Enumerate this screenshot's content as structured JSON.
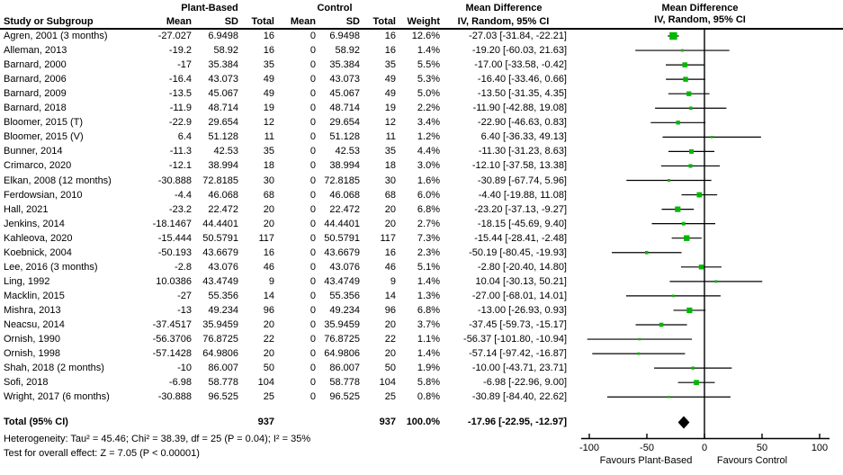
{
  "table": {
    "header": {
      "group1": "Plant-Based",
      "group2": "Control",
      "study_col": "Study or Subgroup",
      "mean": "Mean",
      "sd": "SD",
      "total": "Total",
      "weight": "Weight",
      "md_title": "Mean Difference",
      "md_subtitle": "IV, Random, 95% CI"
    },
    "rows": [
      {
        "study": "Agren, 2001 (3 months)",
        "pb_mean": "-27.027",
        "pb_sd": "6.9498",
        "pb_total": "16",
        "c_mean": "0",
        "c_sd": "6.9498",
        "c_total": "16",
        "weight": "12.6%",
        "ci_text": "-27.03 [-31.84, -22.21]"
      },
      {
        "study": "Alleman, 2013",
        "pb_mean": "-19.2",
        "pb_sd": "58.92",
        "pb_total": "16",
        "c_mean": "0",
        "c_sd": "58.92",
        "c_total": "16",
        "weight": "1.4%",
        "ci_text": "-19.20 [-60.03, 21.63]"
      },
      {
        "study": "Barnard, 2000",
        "pb_mean": "-17",
        "pb_sd": "35.384",
        "pb_total": "35",
        "c_mean": "0",
        "c_sd": "35.384",
        "c_total": "35",
        "weight": "5.5%",
        "ci_text": "-17.00 [-33.58, -0.42]"
      },
      {
        "study": "Barnard, 2006",
        "pb_mean": "-16.4",
        "pb_sd": "43.073",
        "pb_total": "49",
        "c_mean": "0",
        "c_sd": "43.073",
        "c_total": "49",
        "weight": "5.3%",
        "ci_text": "-16.40 [-33.46, 0.66]"
      },
      {
        "study": "Barnard, 2009",
        "pb_mean": "-13.5",
        "pb_sd": "45.067",
        "pb_total": "49",
        "c_mean": "0",
        "c_sd": "45.067",
        "c_total": "49",
        "weight": "5.0%",
        "ci_text": "-13.50 [-31.35, 4.35]"
      },
      {
        "study": "Barnard, 2018",
        "pb_mean": "-11.9",
        "pb_sd": "48.714",
        "pb_total": "19",
        "c_mean": "0",
        "c_sd": "48.714",
        "c_total": "19",
        "weight": "2.2%",
        "ci_text": "-11.90 [-42.88, 19.08]"
      },
      {
        "study": "Bloomer, 2015 (T)",
        "pb_mean": "-22.9",
        "pb_sd": "29.654",
        "pb_total": "12",
        "c_mean": "0",
        "c_sd": "29.654",
        "c_total": "12",
        "weight": "3.4%",
        "ci_text": "-22.90 [-46.63, 0.83]"
      },
      {
        "study": "Bloomer, 2015 (V)",
        "pb_mean": "6.4",
        "pb_sd": "51.128",
        "pb_total": "11",
        "c_mean": "0",
        "c_sd": "51.128",
        "c_total": "11",
        "weight": "1.2%",
        "ci_text": "6.40 [-36.33, 49.13]"
      },
      {
        "study": "Bunner, 2014",
        "pb_mean": "-11.3",
        "pb_sd": "42.53",
        "pb_total": "35",
        "c_mean": "0",
        "c_sd": "42.53",
        "c_total": "35",
        "weight": "4.4%",
        "ci_text": "-11.30 [-31.23, 8.63]"
      },
      {
        "study": "Crimarco, 2020",
        "pb_mean": "-12.1",
        "pb_sd": "38.994",
        "pb_total": "18",
        "c_mean": "0",
        "c_sd": "38.994",
        "c_total": "18",
        "weight": "3.0%",
        "ci_text": "-12.10 [-37.58, 13.38]"
      },
      {
        "study": "Elkan, 2008 (12 months)",
        "pb_mean": "-30.888",
        "pb_sd": "72.8185",
        "pb_total": "30",
        "c_mean": "0",
        "c_sd": "72.8185",
        "c_total": "30",
        "weight": "1.6%",
        "ci_text": "-30.89 [-67.74, 5.96]"
      },
      {
        "study": "Ferdowsian, 2010",
        "pb_mean": "-4.4",
        "pb_sd": "46.068",
        "pb_total": "68",
        "c_mean": "0",
        "c_sd": "46.068",
        "c_total": "68",
        "weight": "6.0%",
        "ci_text": "-4.40 [-19.88, 11.08]"
      },
      {
        "study": "Hall, 2021",
        "pb_mean": "-23.2",
        "pb_sd": "22.472",
        "pb_total": "20",
        "c_mean": "0",
        "c_sd": "22.472",
        "c_total": "20",
        "weight": "6.8%",
        "ci_text": "-23.20 [-37.13, -9.27]"
      },
      {
        "study": "Jenkins, 2014",
        "pb_mean": "-18.1467",
        "pb_sd": "44.4401",
        "pb_total": "20",
        "c_mean": "0",
        "c_sd": "44.4401",
        "c_total": "20",
        "weight": "2.7%",
        "ci_text": "-18.15 [-45.69, 9.40]"
      },
      {
        "study": "Kahleova, 2020",
        "pb_mean": "-15.444",
        "pb_sd": "50.5791",
        "pb_total": "117",
        "c_mean": "0",
        "c_sd": "50.5791",
        "c_total": "117",
        "weight": "7.3%",
        "ci_text": "-15.44 [-28.41, -2.48]"
      },
      {
        "study": "Koebnick, 2004",
        "pb_mean": "-50.193",
        "pb_sd": "43.6679",
        "pb_total": "16",
        "c_mean": "0",
        "c_sd": "43.6679",
        "c_total": "16",
        "weight": "2.3%",
        "ci_text": "-50.19 [-80.45, -19.93]"
      },
      {
        "study": "Lee, 2016 (3 months)",
        "pb_mean": "-2.8",
        "pb_sd": "43.076",
        "pb_total": "46",
        "c_mean": "0",
        "c_sd": "43.076",
        "c_total": "46",
        "weight": "5.1%",
        "ci_text": "-2.80 [-20.40, 14.80]"
      },
      {
        "study": "Ling, 1992",
        "pb_mean": "10.0386",
        "pb_sd": "43.4749",
        "pb_total": "9",
        "c_mean": "0",
        "c_sd": "43.4749",
        "c_total": "9",
        "weight": "1.4%",
        "ci_text": "10.04 [-30.13, 50.21]"
      },
      {
        "study": "Macklin, 2015",
        "pb_mean": "-27",
        "pb_sd": "55.356",
        "pb_total": "14",
        "c_mean": "0",
        "c_sd": "55.356",
        "c_total": "14",
        "weight": "1.3%",
        "ci_text": "-27.00 [-68.01, 14.01]"
      },
      {
        "study": "Mishra, 2013",
        "pb_mean": "-13",
        "pb_sd": "49.234",
        "pb_total": "96",
        "c_mean": "0",
        "c_sd": "49.234",
        "c_total": "96",
        "weight": "6.8%",
        "ci_text": "-13.00 [-26.93, 0.93]"
      },
      {
        "study": "Neacsu, 2014",
        "pb_mean": "-37.4517",
        "pb_sd": "35.9459",
        "pb_total": "20",
        "c_mean": "0",
        "c_sd": "35.9459",
        "c_total": "20",
        "weight": "3.7%",
        "ci_text": "-37.45 [-59.73, -15.17]"
      },
      {
        "study": "Ornish, 1990",
        "pb_mean": "-56.3706",
        "pb_sd": "76.8725",
        "pb_total": "22",
        "c_mean": "0",
        "c_sd": "76.8725",
        "c_total": "22",
        "weight": "1.1%",
        "ci_text": "-56.37 [-101.80, -10.94]"
      },
      {
        "study": "Ornish, 1998",
        "pb_mean": "-57.1428",
        "pb_sd": "64.9806",
        "pb_total": "20",
        "c_mean": "0",
        "c_sd": "64.9806",
        "c_total": "20",
        "weight": "1.4%",
        "ci_text": "-57.14 [-97.42, -16.87]"
      },
      {
        "study": "Shah, 2018 (2 months)",
        "pb_mean": "-10",
        "pb_sd": "86.007",
        "pb_total": "50",
        "c_mean": "0",
        "c_sd": "86.007",
        "c_total": "50",
        "weight": "1.9%",
        "ci_text": "-10.00 [-43.71, 23.71]"
      },
      {
        "study": "Sofi, 2018",
        "pb_mean": "-6.98",
        "pb_sd": "58.778",
        "pb_total": "104",
        "c_mean": "0",
        "c_sd": "58.778",
        "c_total": "104",
        "weight": "5.8%",
        "ci_text": "-6.98 [-22.96, 9.00]"
      },
      {
        "study": "Wright, 2017 (6 months)",
        "pb_mean": "-30.888",
        "pb_sd": "96.525",
        "pb_total": "25",
        "c_mean": "0",
        "c_sd": "96.525",
        "c_total": "25",
        "weight": "0.8%",
        "ci_text": "-30.89 [-84.40, 22.62]"
      }
    ],
    "total_row": {
      "label": "Total (95% CI)",
      "pb_total": "937",
      "c_total": "937",
      "weight": "100.0%",
      "ci_text": "-17.96 [-22.95, -12.97]"
    },
    "footer": {
      "heterogeneity": "Heterogeneity: Tau² = 45.46; Chi² = 38.39, df = 25 (P = 0.04); I² = 35%",
      "overall_effect": "Test for overall effect: Z = 7.05 (P < 0.00001)"
    }
  },
  "chart_data": {
    "type": "scatter",
    "subtype": "forest-plot",
    "title": "Mean Difference",
    "subtitle": "IV, Random, 95% CI",
    "xlim": [
      -100,
      100
    ],
    "ticks": [
      -100,
      -50,
      0,
      50,
      100
    ],
    "xlabel_left": "Favours Plant-Based",
    "xlabel_right": "Favours Control",
    "marker_color": "#00b800",
    "diamond_color": "#000000",
    "line_color": "#000000",
    "studies": [
      {
        "name": "Agren, 2001 (3 months)",
        "est": -27.03,
        "lo": -31.84,
        "hi": -22.21,
        "weight": 12.6
      },
      {
        "name": "Alleman, 2013",
        "est": -19.2,
        "lo": -60.03,
        "hi": 21.63,
        "weight": 1.4
      },
      {
        "name": "Barnard, 2000",
        "est": -17.0,
        "lo": -33.58,
        "hi": -0.42,
        "weight": 5.5
      },
      {
        "name": "Barnard, 2006",
        "est": -16.4,
        "lo": -33.46,
        "hi": 0.66,
        "weight": 5.3
      },
      {
        "name": "Barnard, 2009",
        "est": -13.5,
        "lo": -31.35,
        "hi": 4.35,
        "weight": 5.0
      },
      {
        "name": "Barnard, 2018",
        "est": -11.9,
        "lo": -42.88,
        "hi": 19.08,
        "weight": 2.2
      },
      {
        "name": "Bloomer, 2015 (T)",
        "est": -22.9,
        "lo": -46.63,
        "hi": 0.83,
        "weight": 3.4
      },
      {
        "name": "Bloomer, 2015 (V)",
        "est": 6.4,
        "lo": -36.33,
        "hi": 49.13,
        "weight": 1.2
      },
      {
        "name": "Bunner, 2014",
        "est": -11.3,
        "lo": -31.23,
        "hi": 8.63,
        "weight": 4.4
      },
      {
        "name": "Crimarco, 2020",
        "est": -12.1,
        "lo": -37.58,
        "hi": 13.38,
        "weight": 3.0
      },
      {
        "name": "Elkan, 2008 (12 months)",
        "est": -30.89,
        "lo": -67.74,
        "hi": 5.96,
        "weight": 1.6
      },
      {
        "name": "Ferdowsian, 2010",
        "est": -4.4,
        "lo": -19.88,
        "hi": 11.08,
        "weight": 6.0
      },
      {
        "name": "Hall, 2021",
        "est": -23.2,
        "lo": -37.13,
        "hi": -9.27,
        "weight": 6.8
      },
      {
        "name": "Jenkins, 2014",
        "est": -18.15,
        "lo": -45.69,
        "hi": 9.4,
        "weight": 2.7
      },
      {
        "name": "Kahleova, 2020",
        "est": -15.44,
        "lo": -28.41,
        "hi": -2.48,
        "weight": 7.3
      },
      {
        "name": "Koebnick, 2004",
        "est": -50.19,
        "lo": -80.45,
        "hi": -19.93,
        "weight": 2.3
      },
      {
        "name": "Lee, 2016 (3 months)",
        "est": -2.8,
        "lo": -20.4,
        "hi": 14.8,
        "weight": 5.1
      },
      {
        "name": "Ling, 1992",
        "est": 10.04,
        "lo": -30.13,
        "hi": 50.21,
        "weight": 1.4
      },
      {
        "name": "Macklin, 2015",
        "est": -27.0,
        "lo": -68.01,
        "hi": 14.01,
        "weight": 1.3
      },
      {
        "name": "Mishra, 2013",
        "est": -13.0,
        "lo": -26.93,
        "hi": 0.93,
        "weight": 6.8
      },
      {
        "name": "Neacsu, 2014",
        "est": -37.45,
        "lo": -59.73,
        "hi": -15.17,
        "weight": 3.7
      },
      {
        "name": "Ornish, 1990",
        "est": -56.37,
        "lo": -101.8,
        "hi": -10.94,
        "weight": 1.1
      },
      {
        "name": "Ornish, 1998",
        "est": -57.14,
        "lo": -97.42,
        "hi": -16.87,
        "weight": 1.4
      },
      {
        "name": "Shah, 2018 (2 months)",
        "est": -10.0,
        "lo": -43.71,
        "hi": 23.71,
        "weight": 1.9
      },
      {
        "name": "Sofi, 2018",
        "est": -6.98,
        "lo": -22.96,
        "hi": 9.0,
        "weight": 5.8
      },
      {
        "name": "Wright, 2017 (6 months)",
        "est": -30.89,
        "lo": -84.4,
        "hi": 22.62,
        "weight": 0.8
      }
    ],
    "total": {
      "name": "Total (95% CI)",
      "est": -17.96,
      "lo": -22.95,
      "hi": -12.97,
      "weight": 100.0
    }
  }
}
